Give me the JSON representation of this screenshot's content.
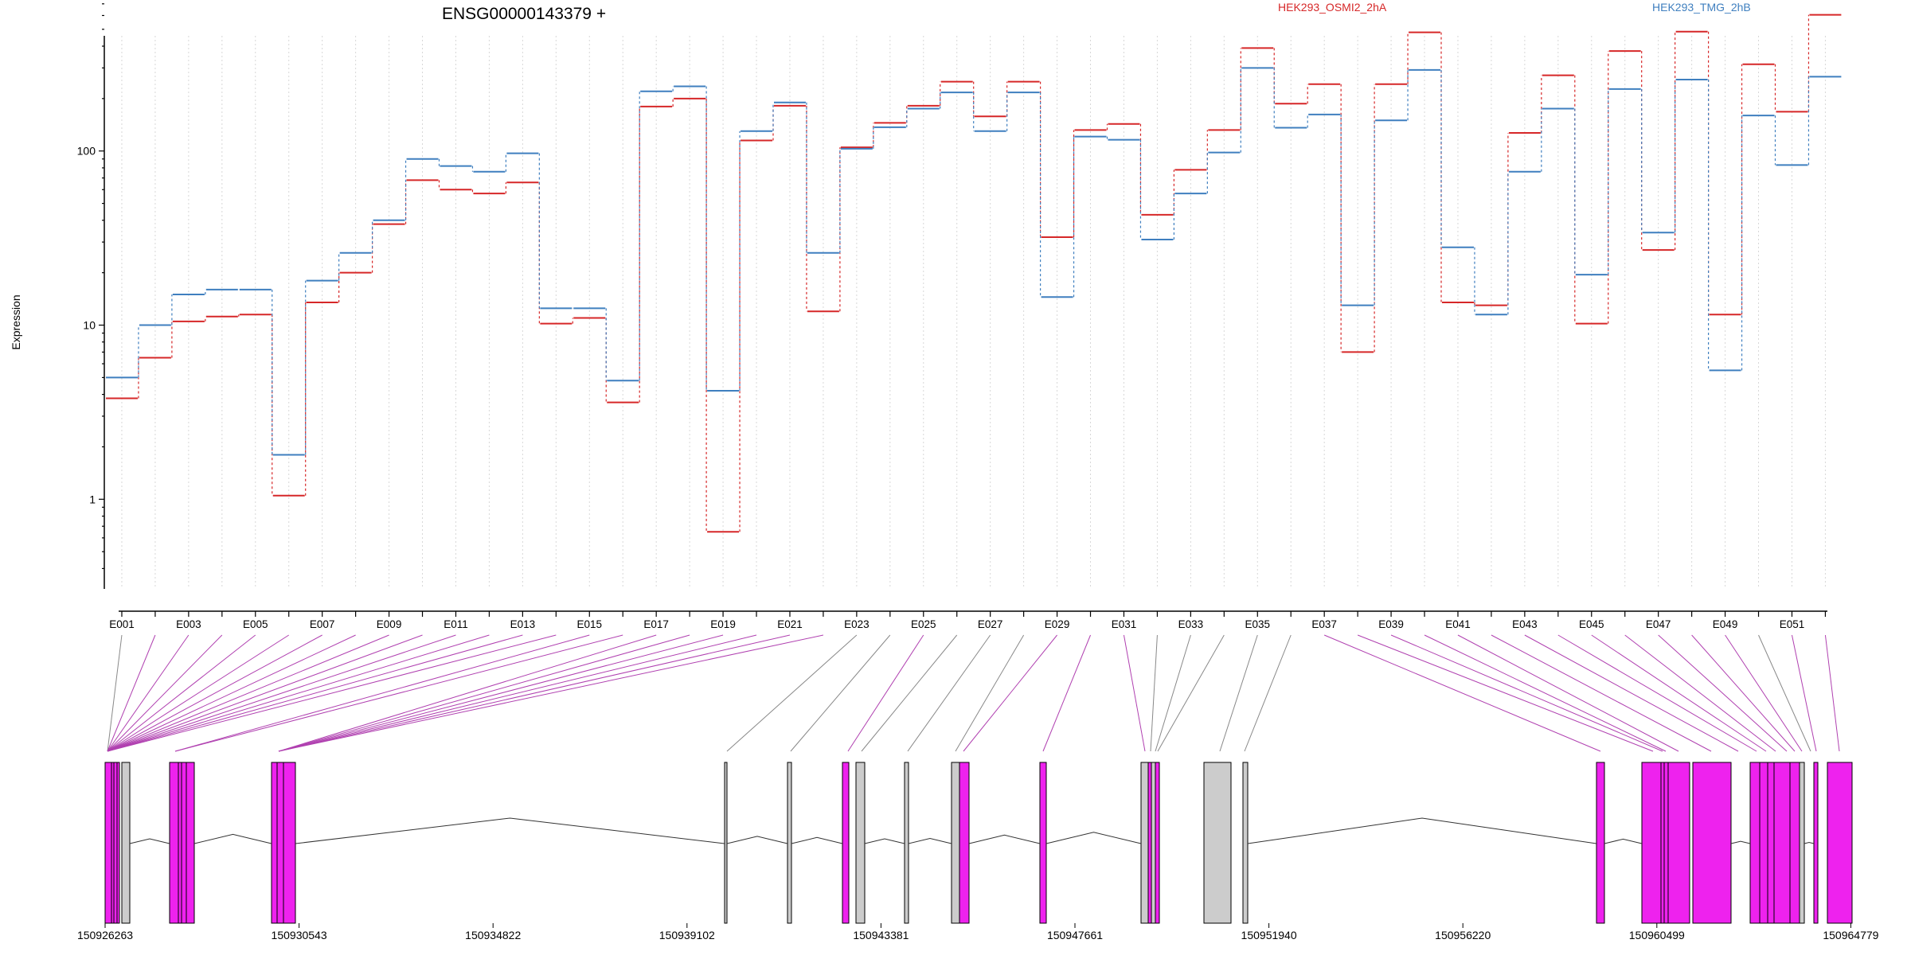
{
  "chart_data": {
    "type": "line",
    "title": "ENSG00000143379 +",
    "ylabel": "Expression",
    "yscale": "log",
    "ylim": [
      0.4,
      850
    ],
    "yticks": [
      1,
      10,
      100
    ],
    "ytick_labels": [
      "1",
      "10",
      "100"
    ],
    "grid": "vertical dotted lines at each exon bin",
    "legend": "top-right",
    "exons": [
      "E001",
      "E002",
      "E003",
      "E004",
      "E005",
      "E006",
      "E007",
      "E008",
      "E009",
      "E010",
      "E011",
      "E012",
      "E013",
      "E014",
      "E015",
      "E016",
      "E017",
      "E018",
      "E019",
      "E020",
      "E021",
      "E022",
      "E023",
      "E024",
      "E025",
      "E026",
      "E027",
      "E028",
      "E029",
      "E030",
      "E031",
      "E032",
      "E033",
      "E034",
      "E035",
      "E036",
      "E037",
      "E038",
      "E039",
      "E040",
      "E041",
      "E042",
      "E043",
      "E044",
      "E045",
      "E046",
      "E047",
      "E048",
      "E049",
      "E050",
      "E051",
      "E052"
    ],
    "exon_tick_labels": [
      "E001",
      "E003",
      "E005",
      "E007",
      "E009",
      "E011",
      "E013",
      "E015",
      "E017",
      "E019",
      "E021",
      "E023",
      "E025",
      "E027",
      "E029",
      "E031",
      "E033",
      "E035",
      "E037",
      "E039",
      "E041",
      "E043",
      "E045",
      "E047",
      "E049",
      "E051"
    ],
    "series": [
      {
        "name": "HEK293_OSMI2_2hA",
        "color": "#d62728",
        "values": [
          3.8,
          6.5,
          10.5,
          11.2,
          11.5,
          1.05,
          13.5,
          20,
          38,
          68,
          60,
          57,
          66,
          10.2,
          11,
          3.6,
          180,
          200,
          0.65,
          115,
          182,
          12,
          105,
          145,
          182,
          250,
          158,
          250,
          32,
          132,
          143,
          43,
          78,
          132,
          390,
          187,
          242,
          7,
          242,
          480,
          13.5,
          13,
          127,
          272,
          10.2,
          375,
          27,
          485,
          11.5,
          315,
          168,
          605
        ]
      },
      {
        "name": "HEK293_TMG_2hB",
        "color": "#3f7fbf",
        "values": [
          5,
          10,
          15,
          16,
          16,
          1.8,
          18,
          26,
          40,
          90,
          82,
          76,
          97,
          12.5,
          12.5,
          4.8,
          220,
          235,
          4.2,
          130,
          190,
          26,
          103,
          137,
          175,
          217,
          130,
          217,
          14.5,
          121,
          116,
          31,
          57,
          98,
          300,
          136,
          162,
          13,
          150,
          292,
          28,
          11.5,
          76,
          175,
          19.5,
          227,
          34,
          257,
          5.5,
          160,
          83,
          267
        ]
      }
    ],
    "gene_model": {
      "coordinate_labels": [
        "150926263",
        "150930543",
        "150934822",
        "150939102",
        "150943381",
        "150947661",
        "150951940",
        "150956220",
        "150960499",
        "150964779"
      ],
      "exon_fill": "#ee22ee",
      "intron_fill": "#cccccc"
    }
  }
}
